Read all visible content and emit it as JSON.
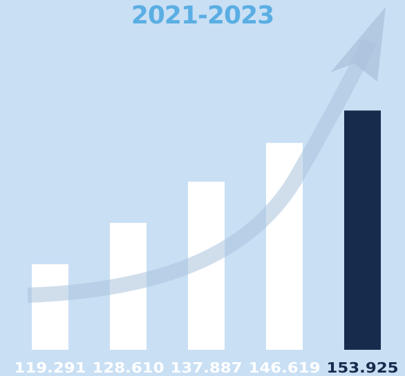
{
  "title": "2021-2023",
  "colors": {
    "background": "#c9dff4",
    "title": "#5aaee3",
    "bar": "#ffffff",
    "highlight_bar": "#172b4d",
    "value_label": "#ffffff",
    "highlight_label": "#172b4d",
    "arrow": "#a9c2dc"
  },
  "icons": {
    "trend": "trend-arrow-icon"
  },
  "chart_data": {
    "type": "bar",
    "title": "2021-2023",
    "categories": [],
    "values": [
      119.291,
      128.61,
      137.887,
      146.619,
      153.925
    ],
    "labels": [
      "119.291",
      "128.610",
      "137.887",
      "146.619",
      "153.925"
    ],
    "highlight_index": 4,
    "ylim": [
      100,
      158
    ],
    "grid": false,
    "legend": "none"
  }
}
